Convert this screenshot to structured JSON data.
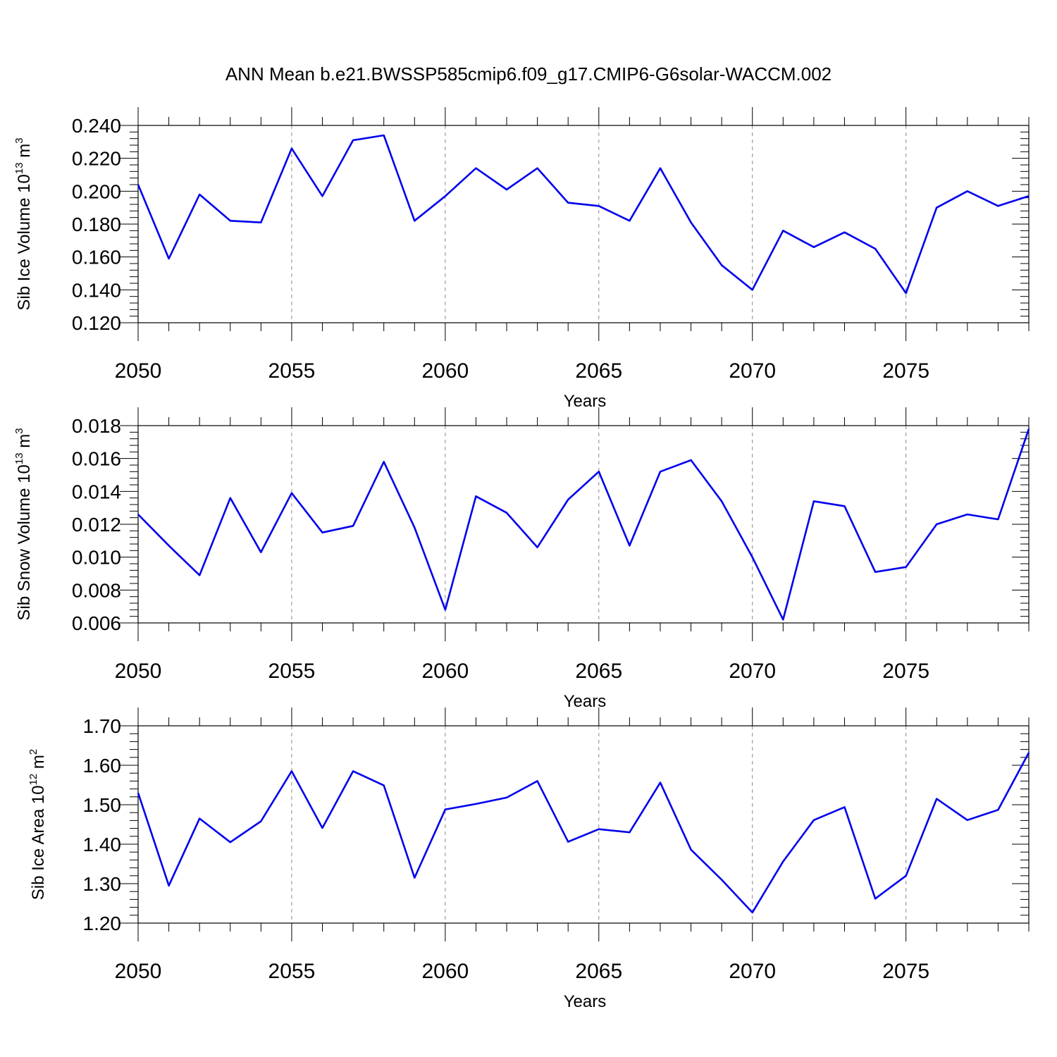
{
  "title": "ANN Mean b.e21.BWSSP585cmip6.f09_g17.CMIP6-G6solar-WACCM.002",
  "chart_data": [
    {
      "type": "line",
      "ylabel": {
        "text": "Sib Ice Volume 10",
        "exp": "13",
        "unit": " m",
        "unit_exp": "3"
      },
      "xlabel": "Years",
      "xlim": [
        2050,
        2079
      ],
      "ylim": [
        0.12,
        0.24
      ],
      "yticks": [
        "0.120",
        "0.140",
        "0.160",
        "0.180",
        "0.200",
        "0.220",
        "0.240"
      ],
      "xticks": [
        "2050",
        "2055",
        "2060",
        "2065",
        "2070",
        "2075"
      ],
      "color": "#0000ee",
      "x": [
        2050,
        2051,
        2052,
        2053,
        2054,
        2055,
        2056,
        2057,
        2058,
        2059,
        2060,
        2061,
        2062,
        2063,
        2064,
        2065,
        2066,
        2067,
        2068,
        2069,
        2070,
        2071,
        2072,
        2073,
        2074,
        2075,
        2076,
        2077,
        2078,
        2079
      ],
      "values": [
        0.204,
        0.159,
        0.198,
        0.182,
        0.181,
        0.226,
        0.197,
        0.231,
        0.234,
        0.182,
        0.197,
        0.214,
        0.201,
        0.214,
        0.193,
        0.191,
        0.182,
        0.214,
        0.181,
        0.155,
        0.14,
        0.176,
        0.166,
        0.175,
        0.165,
        0.138,
        0.19,
        0.2,
        0.191,
        0.197
      ]
    },
    {
      "type": "line",
      "ylabel": {
        "text": "Sib Snow Volume 10",
        "exp": "13",
        "unit": " m",
        "unit_exp": "3"
      },
      "xlabel": "Years",
      "xlim": [
        2050,
        2079
      ],
      "ylim": [
        0.006,
        0.018
      ],
      "yticks": [
        "0.006",
        "0.008",
        "0.010",
        "0.012",
        "0.014",
        "0.016",
        "0.018"
      ],
      "xticks": [
        "2050",
        "2055",
        "2060",
        "2065",
        "2070",
        "2075"
      ],
      "color": "#0000ee",
      "x": [
        2050,
        2051,
        2052,
        2053,
        2054,
        2055,
        2056,
        2057,
        2058,
        2059,
        2060,
        2061,
        2062,
        2063,
        2064,
        2065,
        2066,
        2067,
        2068,
        2069,
        2070,
        2071,
        2072,
        2073,
        2074,
        2075,
        2076,
        2077,
        2078,
        2079
      ],
      "values": [
        0.0126,
        0.0107,
        0.0089,
        0.0136,
        0.0103,
        0.0139,
        0.0115,
        0.0119,
        0.0158,
        0.0118,
        0.0068,
        0.0137,
        0.0127,
        0.0106,
        0.0135,
        0.0152,
        0.0107,
        0.0152,
        0.0159,
        0.0134,
        0.01,
        0.0062,
        0.0134,
        0.0131,
        0.0091,
        0.0094,
        0.012,
        0.0126,
        0.0123,
        0.0178
      ]
    },
    {
      "type": "line",
      "ylabel": {
        "text": "Sib Ice Area 10",
        "exp": "12",
        "unit": " m",
        "unit_exp": "2"
      },
      "xlabel": "Years",
      "xlim": [
        2050,
        2079
      ],
      "ylim": [
        1.2,
        1.7
      ],
      "yticks": [
        "1.20",
        "1.30",
        "1.40",
        "1.50",
        "1.60",
        "1.70"
      ],
      "xticks": [
        "2050",
        "2055",
        "2060",
        "2065",
        "2070",
        "2075"
      ],
      "color": "#0000ee",
      "x": [
        2050,
        2051,
        2052,
        2053,
        2054,
        2055,
        2056,
        2057,
        2058,
        2059,
        2060,
        2061,
        2062,
        2063,
        2064,
        2065,
        2066,
        2067,
        2068,
        2069,
        2070,
        2071,
        2072,
        2073,
        2074,
        2075,
        2076,
        2077,
        2078,
        2079
      ],
      "values": [
        1.53,
        1.295,
        1.465,
        1.405,
        1.458,
        1.585,
        1.441,
        1.585,
        1.549,
        1.315,
        1.488,
        1.502,
        1.518,
        1.56,
        1.406,
        1.438,
        1.43,
        1.556,
        1.386,
        1.31,
        1.227,
        1.356,
        1.461,
        1.494,
        1.262,
        1.32,
        1.515,
        1.461,
        1.487,
        1.632
      ]
    }
  ]
}
